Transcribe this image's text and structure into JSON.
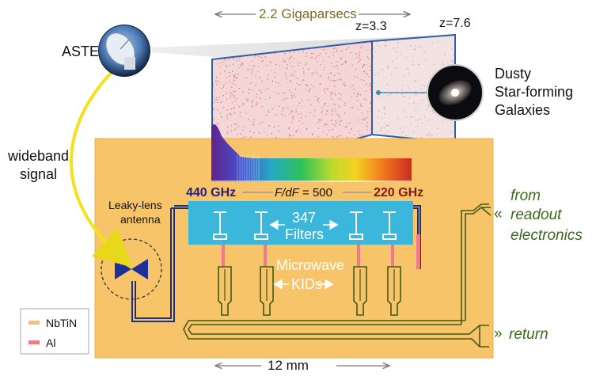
{
  "top_scale": {
    "label": "2.2 Gigaparsecs"
  },
  "bottom_scale": {
    "label": "12 mm"
  },
  "redshift": {
    "near": "z=3.3",
    "far": "z=7.6"
  },
  "telescope": {
    "label": "ASTE"
  },
  "galaxies": {
    "line1": "Dusty",
    "line2": "Star-forming",
    "line3": "Galaxies"
  },
  "signal": {
    "line1": "wideband",
    "line2": "signal"
  },
  "antenna": {
    "line1": "Leaky-lens",
    "line2": "antenna"
  },
  "filterbank": {
    "freq_high": "440 GHz",
    "freq_low": "220 GHz",
    "resolution_prefix": "F/dF",
    "resolution_value": " = 500",
    "filters_count": "347",
    "filters_label": "Filters"
  },
  "kids": {
    "line1": "Microwave",
    "line2": "KIDs"
  },
  "readout": {
    "marker": "«",
    "line1": "from",
    "line2": "readout",
    "line3": "electronics"
  },
  "return_port": {
    "marker": "»",
    "label": "return"
  },
  "legend": {
    "items": [
      {
        "label": "NbTiN",
        "color": "#f5c06f"
      },
      {
        "label": "Al",
        "color": "#ee7b8a"
      }
    ]
  },
  "colors": {
    "chip": "#f8c469",
    "filter_block": "#3cb7dc",
    "line": "#1c2f7a",
    "wire": "#405a1a",
    "aluminium": "#ee7b8a",
    "arrow": "#f2e21c"
  }
}
